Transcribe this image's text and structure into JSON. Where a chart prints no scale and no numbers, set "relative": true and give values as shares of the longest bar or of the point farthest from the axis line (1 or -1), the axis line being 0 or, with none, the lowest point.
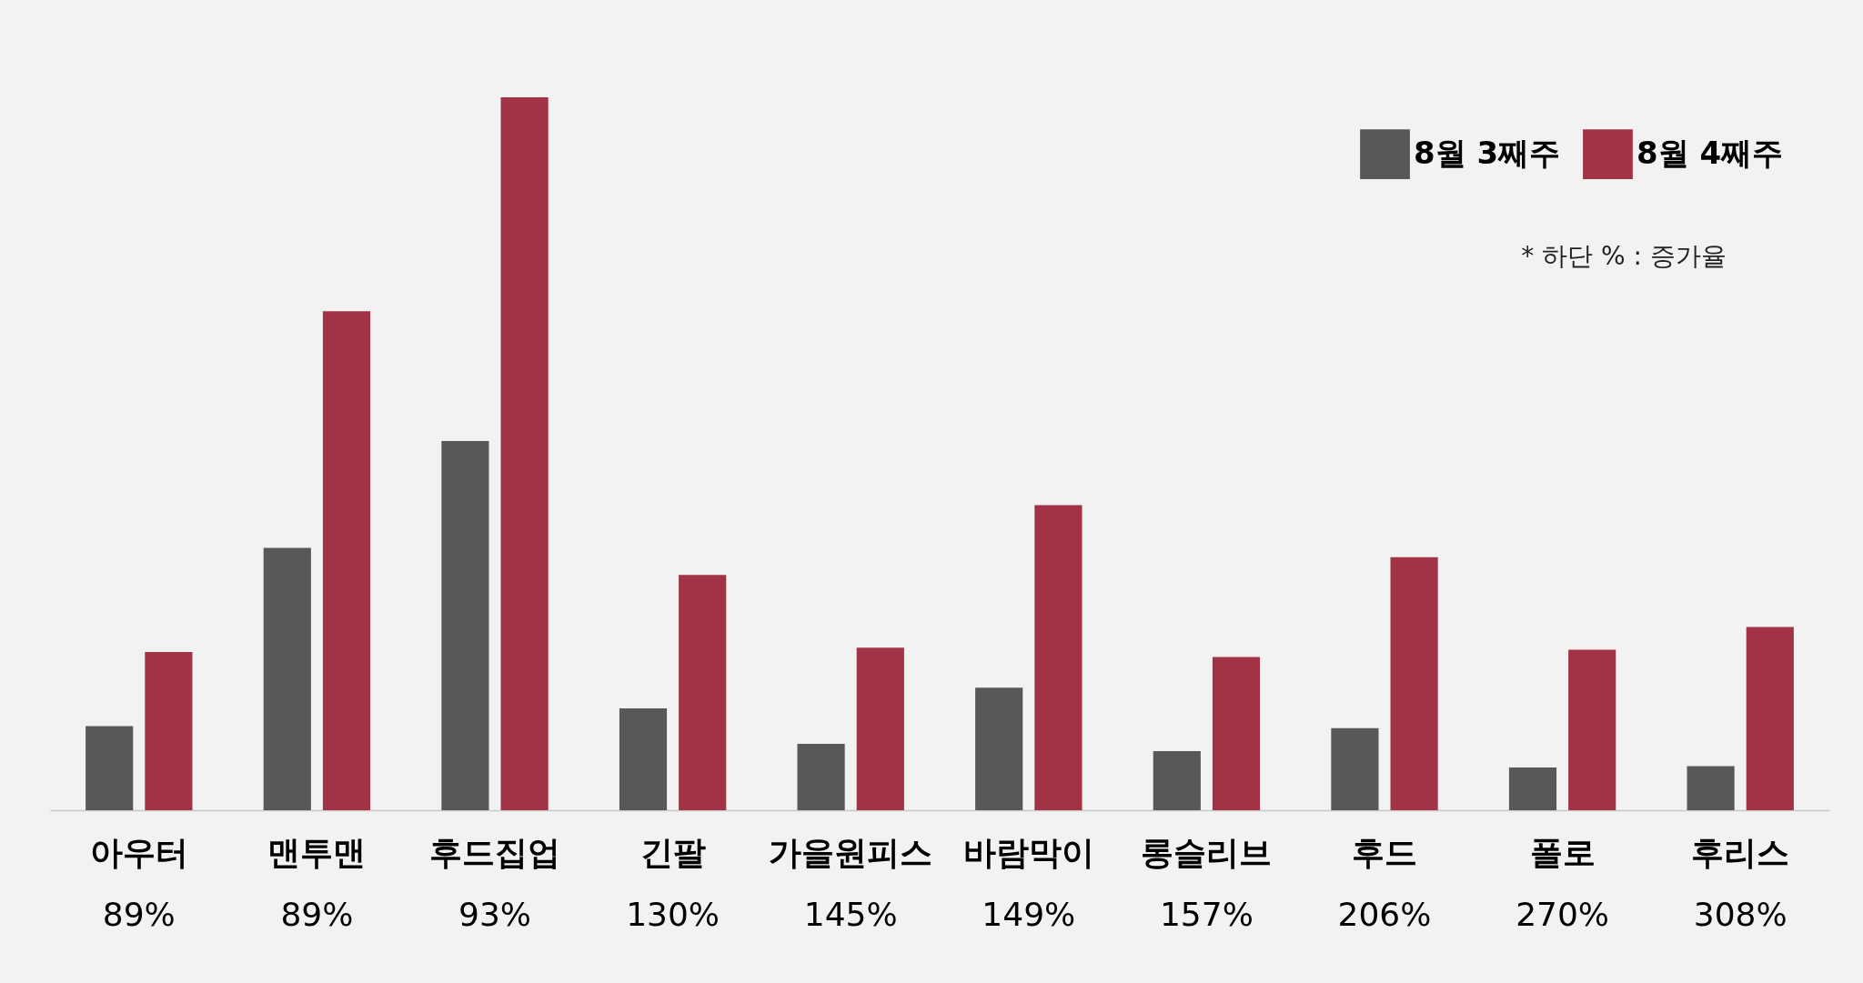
{
  "chart_data": {
    "type": "bar",
    "relative": true,
    "categories": [
      "아우터",
      "맨투맨",
      "후드집업",
      "긴팔",
      "가을원피스",
      "바람막이",
      "롱슬리브",
      "후드",
      "폴로",
      "후리스"
    ],
    "series": [
      {
        "name": "8월 3째주",
        "color": "#585858",
        "values": [
          0.118,
          0.368,
          0.518,
          0.143,
          0.093,
          0.172,
          0.083,
          0.115,
          0.06,
          0.062
        ]
      },
      {
        "name": "8월 4째주",
        "color": "#a23346",
        "values": [
          0.222,
          0.7,
          1.0,
          0.33,
          0.228,
          0.428,
          0.215,
          0.355,
          0.225,
          0.257
        ]
      }
    ],
    "legend": "top right",
    "annotations": [
      "89%",
      "89%",
      "93%",
      "130%",
      "145%",
      "149%",
      "157%",
      "206%",
      "270%",
      "308%",
      "* 하단 % : 증가율"
    ]
  }
}
